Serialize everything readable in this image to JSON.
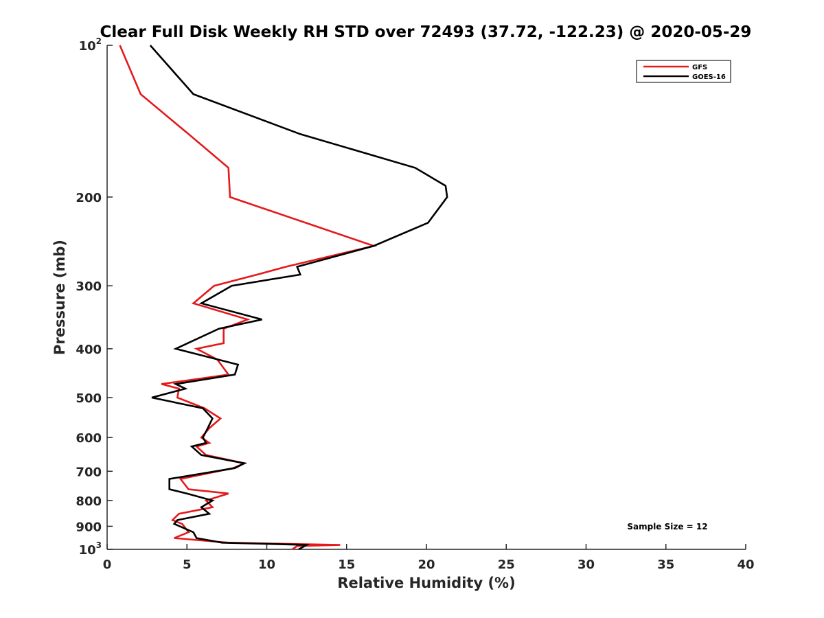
{
  "chart_data": {
    "type": "line",
    "title": "Clear Full Disk Weekly RH STD over 72493 (37.72, -122.23) @ 2020-05-29",
    "xlabel": "Relative Humidity (%)",
    "ylabel": "Pressure (mb)",
    "xlim": [
      0,
      40
    ],
    "ylim": [
      100,
      1000
    ],
    "y_scale": "log",
    "y_reversed": true,
    "x_ticks": [
      "0",
      "5",
      "10",
      "15",
      "20",
      "25",
      "30",
      "35",
      "40"
    ],
    "y_ticks": [
      {
        "value": 100,
        "base": "10",
        "exp": "2"
      },
      {
        "value": 200,
        "label": "200"
      },
      {
        "value": 300,
        "label": "300"
      },
      {
        "value": 400,
        "label": "400"
      },
      {
        "value": 500,
        "label": "500"
      },
      {
        "value": 600,
        "label": "600"
      },
      {
        "value": 700,
        "label": "700"
      },
      {
        "value": 800,
        "label": "800"
      },
      {
        "value": 900,
        "label": "900"
      },
      {
        "value": 1000,
        "base": "10",
        "exp": "3"
      }
    ],
    "grid": false,
    "legend_position": "top-right",
    "annotation": "Sample Size = 12",
    "series": [
      {
        "name": "GFS",
        "color": "#e41a1c",
        "points": [
          [
            0.8,
            100
          ],
          [
            2.1,
            125
          ],
          [
            5.1,
            150
          ],
          [
            7.6,
            175
          ],
          [
            7.7,
            200
          ],
          [
            16.7,
            250
          ],
          [
            11.2,
            275
          ],
          [
            9.4,
            285
          ],
          [
            6.7,
            300
          ],
          [
            5.4,
            325
          ],
          [
            8.8,
            350
          ],
          [
            7.3,
            365
          ],
          [
            7.3,
            390
          ],
          [
            5.6,
            400
          ],
          [
            6.9,
            420
          ],
          [
            7.6,
            450
          ],
          [
            3.4,
            470
          ],
          [
            4.5,
            480
          ],
          [
            4.4,
            500
          ],
          [
            6.1,
            525
          ],
          [
            7.1,
            550
          ],
          [
            6.4,
            575
          ],
          [
            5.9,
            600
          ],
          [
            6.4,
            615
          ],
          [
            5.6,
            625
          ],
          [
            6.2,
            650
          ],
          [
            8.6,
            675
          ],
          [
            7.9,
            690
          ],
          [
            4.6,
            725
          ],
          [
            5.1,
            760
          ],
          [
            7.6,
            775
          ],
          [
            6.2,
            800
          ],
          [
            6.6,
            825
          ],
          [
            4.5,
            850
          ],
          [
            4.1,
            875
          ],
          [
            4.7,
            890
          ],
          [
            5.1,
            925
          ],
          [
            4.2,
            950
          ],
          [
            7.6,
            970
          ],
          [
            14.6,
            980
          ],
          [
            11.9,
            985
          ],
          [
            11.6,
            1000
          ]
        ]
      },
      {
        "name": "GOES-16",
        "color": "#000000",
        "points": [
          [
            2.7,
            100
          ],
          [
            5.4,
            125
          ],
          [
            12.1,
            150
          ],
          [
            19.3,
            175
          ],
          [
            21.2,
            190
          ],
          [
            21.3,
            200
          ],
          [
            20.1,
            225
          ],
          [
            16.7,
            250
          ],
          [
            11.9,
            275
          ],
          [
            12.1,
            285
          ],
          [
            7.8,
            300
          ],
          [
            5.9,
            325
          ],
          [
            9.7,
            350
          ],
          [
            7.0,
            365
          ],
          [
            4.3,
            400
          ],
          [
            8.2,
            430
          ],
          [
            8.0,
            450
          ],
          [
            4.3,
            470
          ],
          [
            4.9,
            480
          ],
          [
            2.8,
            500
          ],
          [
            6.0,
            525
          ],
          [
            6.6,
            550
          ],
          [
            6.3,
            575
          ],
          [
            6.0,
            600
          ],
          [
            6.2,
            615
          ],
          [
            5.3,
            625
          ],
          [
            5.9,
            650
          ],
          [
            8.6,
            675
          ],
          [
            8.0,
            690
          ],
          [
            3.9,
            725
          ],
          [
            3.9,
            760
          ],
          [
            5.0,
            775
          ],
          [
            6.6,
            800
          ],
          [
            5.9,
            825
          ],
          [
            6.4,
            850
          ],
          [
            4.4,
            875
          ],
          [
            4.2,
            890
          ],
          [
            5.4,
            925
          ],
          [
            5.6,
            950
          ],
          [
            7.2,
            970
          ],
          [
            12.5,
            980
          ],
          [
            12.0,
            1000
          ]
        ]
      }
    ]
  }
}
